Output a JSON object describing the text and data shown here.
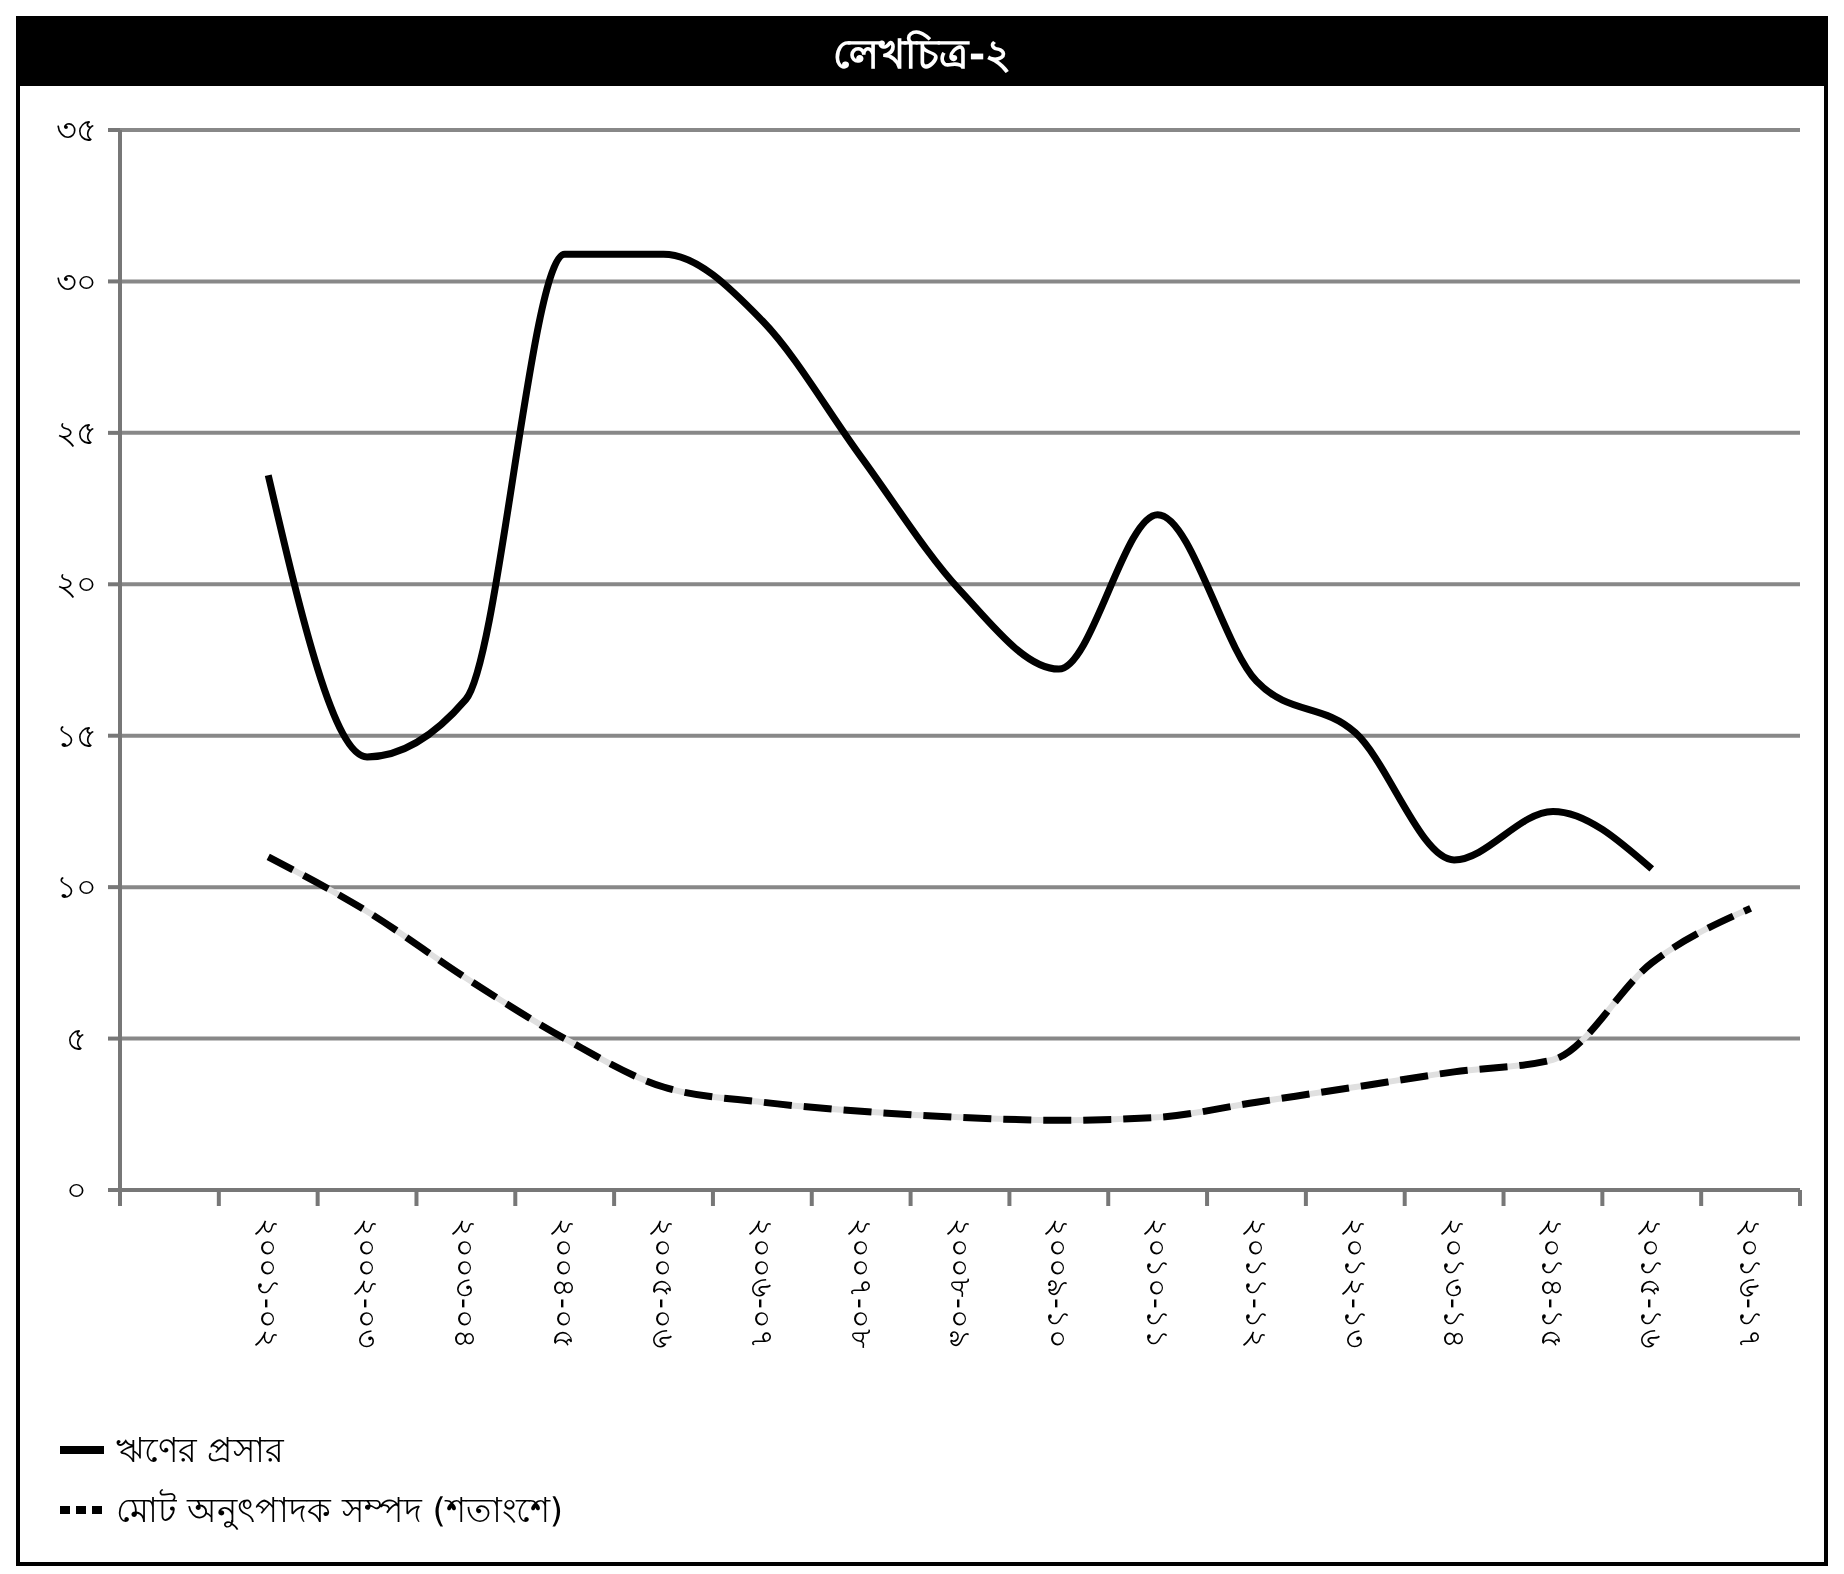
{
  "chart_data": {
    "type": "line",
    "title": "লেখচিত্র-২",
    "categories": [
      null,
      "২০০১-০২",
      "২০০২-০৩",
      "২০০৩-০৪",
      "২০০৪-০৫",
      "২০০৫-০৬",
      "২০০৬-০৭",
      "২০০৭-০৮",
      "২০০৮-০৯",
      "২০০৯-১০",
      "২০১০-১১",
      "২০১১-১২",
      "২০১২-১৩",
      "২০১৩-১৪",
      "২০১৪-১৫",
      "২০১৫-১৬",
      "২০১৬-১৭"
    ],
    "series": [
      {
        "name": "ঋণের প্রসার",
        "color": "#000000",
        "line_style": "solid",
        "values": [
          null,
          23.6,
          14.3,
          16.2,
          30.9,
          30.9,
          28.7,
          24.2,
          19.8,
          17.2,
          22.3,
          16.8,
          15.1,
          10.9,
          12.5,
          10.6,
          null
        ]
      },
      {
        "name": "মোট অনুৎপাদক সম্পদ (শতাংশে)",
        "color": "#000000",
        "line_style": "dashed",
        "values": [
          null,
          11.0,
          9.2,
          7.0,
          5.0,
          3.4,
          2.9,
          2.6,
          2.4,
          2.3,
          2.4,
          2.9,
          3.4,
          3.9,
          4.3,
          7.5,
          9.3
        ]
      }
    ],
    "ylim": [
      0,
      35
    ],
    "yticks": [
      {
        "value": 0,
        "label": "০"
      },
      {
        "value": 5,
        "label": "৫"
      },
      {
        "value": 10,
        "label": "১০"
      },
      {
        "value": 15,
        "label": "১৫"
      },
      {
        "value": 20,
        "label": "২০"
      },
      {
        "value": 25,
        "label": "২৫"
      },
      {
        "value": 30,
        "label": "৩০"
      },
      {
        "value": 35,
        "label": "৩৫"
      }
    ],
    "grid": "y",
    "legend": "bottom left",
    "marker": "none"
  }
}
